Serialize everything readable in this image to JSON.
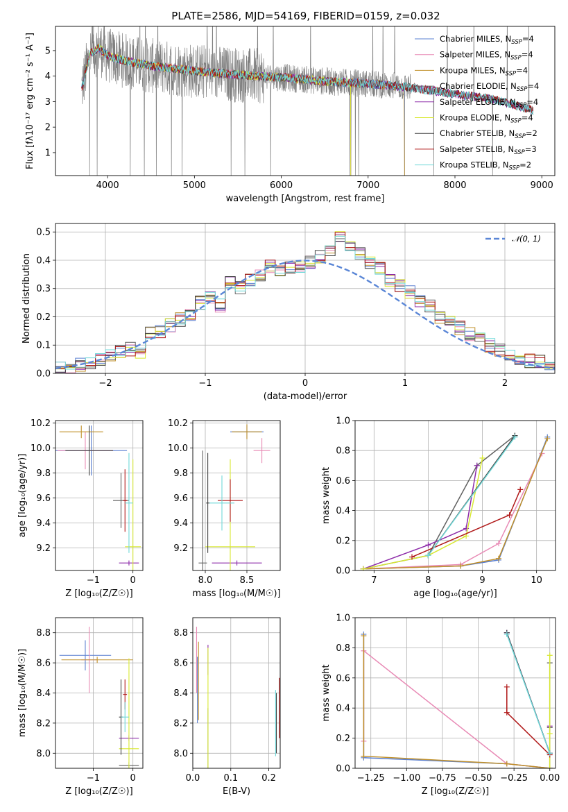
{
  "title": "PLATE=2586, MJD=54169, FIBERID=0159, z=0.032",
  "colors": [
    "#5a7fd0",
    "#e88ab5",
    "#c0902a",
    "#606060",
    "#8c2aa8",
    "#d8e832",
    "#404040",
    "#b01818",
    "#6fd8d8"
  ],
  "legend": [
    {
      "prefix": "Chabrier MILES, N",
      "sub": "SSP",
      "suffix": "=4"
    },
    {
      "prefix": "Salpeter MILES, N",
      "sub": "SSP",
      "suffix": "=4"
    },
    {
      "prefix": "Kroupa MILES, N",
      "sub": "SSP",
      "suffix": "=4"
    },
    {
      "prefix": "Chabrier ELODIE, N",
      "sub": "SSP",
      "suffix": "=4"
    },
    {
      "prefix": "Salpeter ELODIE, N",
      "sub": "SSP",
      "suffix": "=4"
    },
    {
      "prefix": "Kroupa ELODIE, N",
      "sub": "SSP",
      "suffix": "=4"
    },
    {
      "prefix": "Chabrier STELIB, N",
      "sub": "SSP",
      "suffix": "=2"
    },
    {
      "prefix": "Salpeter STELIB, N",
      "sub": "SSP",
      "suffix": "=3"
    },
    {
      "prefix": "Kroupa STELIB, N",
      "sub": "SSP",
      "suffix": "=2"
    }
  ],
  "chart_data": [
    {
      "id": "spectrum",
      "type": "line",
      "xlabel": "wavelength [Angstrom, rest frame]",
      "ylabel": "Flux [fλ10⁻¹⁷ erg cm⁻² s⁻¹ A⁻¹]",
      "xlim": [
        3400,
        9150
      ],
      "ylim": [
        0.1,
        5.95
      ],
      "xticks": [
        4000,
        5000,
        6000,
        7000,
        8000,
        9000
      ],
      "yticks": [
        1,
        2,
        3,
        4,
        5
      ],
      "grid": false,
      "legend_loc": "upper right",
      "continuum": [
        [
          3700,
          3.5
        ],
        [
          3800,
          4.9
        ],
        [
          3900,
          5.1
        ],
        [
          4000,
          4.8
        ],
        [
          4200,
          4.6
        ],
        [
          4500,
          4.4
        ],
        [
          5000,
          4.2
        ],
        [
          5500,
          4.05
        ],
        [
          6000,
          3.95
        ],
        [
          6500,
          3.8
        ],
        [
          7000,
          3.7
        ],
        [
          7500,
          3.55
        ],
        [
          8000,
          3.3
        ],
        [
          8500,
          3.05
        ],
        [
          8900,
          2.65
        ]
      ],
      "data_extent": [
        3700,
        8900
      ],
      "model_edges": [
        [
          3700,
          7420
        ],
        [
          3750,
          6800
        ],
        [
          3750,
          7420
        ],
        [
          3700,
          8900
        ],
        [
          3700,
          8900
        ],
        [
          3750,
          6800
        ],
        [
          3700,
          8900
        ],
        [
          3700,
          8900
        ],
        [
          3700,
          8900
        ]
      ]
    },
    {
      "id": "residual_hist",
      "type": "histogram",
      "xlabel": "(data-model)/error",
      "ylabel": "Normed distribution",
      "xlim": [
        -2.5,
        2.5
      ],
      "ylim": [
        0,
        0.53
      ],
      "xticks": [
        -2,
        -1,
        0,
        1,
        2
      ],
      "yticks": [
        0.0,
        0.1,
        0.2,
        0.3,
        0.4,
        0.5
      ],
      "grid": true,
      "legend_loc": "upper right",
      "reference_label": "𝒩(0, 1)",
      "reference": {
        "mu": 0,
        "sigma": 1
      },
      "bin_width": 0.1,
      "base_values": [
        0.02,
        0.025,
        0.03,
        0.04,
        0.05,
        0.06,
        0.08,
        0.085,
        0.07,
        0.14,
        0.15,
        0.17,
        0.19,
        0.21,
        0.25,
        0.27,
        0.24,
        0.32,
        0.3,
        0.33,
        0.35,
        0.38,
        0.36,
        0.37,
        0.38,
        0.39,
        0.41,
        0.44,
        0.48,
        0.45,
        0.42,
        0.39,
        0.37,
        0.33,
        0.31,
        0.29,
        0.26,
        0.24,
        0.2,
        0.19,
        0.16,
        0.14,
        0.12,
        0.1,
        0.08,
        0.06,
        0.05,
        0.045,
        0.04,
        0.035
      ]
    },
    {
      "id": "Z_vs_age",
      "type": "errorbar",
      "xlabel": "Z [log₁₀(Z/Z☉)]",
      "ylabel": "age  [log₁₀(age/yr)]",
      "xlim": [
        -1.95,
        0.25
      ],
      "ylim": [
        9.02,
        10.22
      ],
      "xticks": [
        -1,
        0
      ],
      "yticks": [
        9.2,
        9.4,
        9.6,
        9.8,
        10.0,
        10.2
      ],
      "points": [
        {
          "c": 0,
          "x": -1.05,
          "y": 9.98,
          "xerr": 0.9,
          "yerr": 0.2
        },
        {
          "c": 1,
          "x": -1.2,
          "y": 9.98,
          "xerr": 0.7,
          "yerr": 0.15
        },
        {
          "c": 2,
          "x": -1.3,
          "y": 10.13,
          "xerr": 0.55,
          "yerr": 0.05
        },
        {
          "c": 3,
          "x": -0.3,
          "y": 9.58,
          "xerr": 0.2,
          "yerr": 0.22
        },
        {
          "c": 4,
          "x": -0.1,
          "y": 9.08,
          "xerr": 0.25,
          "yerr": 0.02
        },
        {
          "c": 5,
          "x": 0.0,
          "y": 9.21,
          "xerr": 0.2,
          "yerr": 0.7
        },
        {
          "c": 6,
          "x": -1.1,
          "y": 9.98,
          "xerr": 0.6,
          "yerr": 0.2
        },
        {
          "c": 7,
          "x": -0.2,
          "y": 9.58,
          "xerr": 0.05,
          "yerr": 0.25
        },
        {
          "c": 8,
          "x": -0.1,
          "y": 9.56,
          "xerr": 0.1,
          "yerr": 0.4
        }
      ]
    },
    {
      "id": "mass_vs_age",
      "type": "errorbar",
      "xlabel": "mass [log₁₀(M/M☉)]",
      "ylabel": "",
      "xlim": [
        7.85,
        8.9
      ],
      "ylim": [
        9.02,
        10.22
      ],
      "xticks": [
        8.0,
        8.5
      ],
      "yticks": [
        9.2,
        9.4,
        9.6,
        9.8,
        10.0,
        10.2
      ],
      "points": [
        {
          "c": 0,
          "x": 8.5,
          "y": 10.13,
          "xerr": 0.2,
          "yerr": 0.05
        },
        {
          "c": 1,
          "x": 8.68,
          "y": 9.98,
          "xerr": 0.1,
          "yerr": 0.1
        },
        {
          "c": 2,
          "x": 8.5,
          "y": 10.13,
          "xerr": 0.18,
          "yerr": 0.06
        },
        {
          "c": 3,
          "x": 7.97,
          "y": 9.08,
          "xerr": 0.05,
          "yerr": 0.9
        },
        {
          "c": 4,
          "x": 8.38,
          "y": 9.08,
          "xerr": 0.3,
          "yerr": 0.02
        },
        {
          "c": 5,
          "x": 8.3,
          "y": 9.21,
          "xerr": 0.3,
          "yerr": 0.7
        },
        {
          "c": 6,
          "x": 8.03,
          "y": 9.56,
          "xerr": 0.02,
          "yerr": 0.4
        },
        {
          "c": 7,
          "x": 8.3,
          "y": 9.58,
          "xerr": 0.15,
          "yerr": 0.17
        },
        {
          "c": 8,
          "x": 8.2,
          "y": 9.56,
          "xerr": 0.15,
          "yerr": 0.22
        }
      ]
    },
    {
      "id": "age_vs_weight",
      "type": "line",
      "xlabel": "age  [log₁₀(age/yr)]",
      "ylabel": "mass weight",
      "xlim": [
        6.65,
        10.35
      ],
      "ylim": [
        0,
        1.0
      ],
      "xticks": [
        7,
        8,
        9,
        10
      ],
      "yticks": [
        0.0,
        0.2,
        0.4,
        0.6,
        0.8,
        1.0
      ],
      "series": [
        {
          "c": 0,
          "x": [
            6.8,
            8.6,
            9.3,
            10.2
          ],
          "y": [
            0.01,
            0.03,
            0.07,
            0.89
          ]
        },
        {
          "c": 1,
          "x": [
            6.8,
            8.6,
            9.3,
            10.1
          ],
          "y": [
            0.01,
            0.04,
            0.18,
            0.78
          ]
        },
        {
          "c": 2,
          "x": [
            6.8,
            8.6,
            9.3,
            10.2
          ],
          "y": [
            0.01,
            0.03,
            0.08,
            0.88
          ]
        },
        {
          "c": 3,
          "x": [
            6.8,
            8.0,
            8.9,
            9.6
          ],
          "y": [
            0.01,
            0.1,
            0.7,
            0.9
          ]
        },
        {
          "c": 4,
          "x": [
            6.8,
            8.0,
            8.7,
            8.9
          ],
          "y": [
            0.01,
            0.17,
            0.28,
            0.7
          ]
        },
        {
          "c": 5,
          "x": [
            6.8,
            8.0,
            8.7,
            9.0
          ],
          "y": [
            0.01,
            0.1,
            0.23,
            0.75
          ]
        },
        {
          "c": 6,
          "x": [
            8.0,
            9.6
          ],
          "y": [
            0.1,
            0.9
          ]
        },
        {
          "c": 7,
          "x": [
            7.7,
            9.5,
            9.7
          ],
          "y": [
            0.09,
            0.37,
            0.54
          ]
        },
        {
          "c": 8,
          "x": [
            8.0,
            9.6
          ],
          "y": [
            0.1,
            0.89
          ]
        }
      ]
    },
    {
      "id": "Z_vs_mass",
      "type": "errorbar",
      "xlabel": "Z [log₁₀(Z/Z☉)]",
      "ylabel": "mass [log₁₀(M/M☉)]",
      "xlim": [
        -1.95,
        0.25
      ],
      "ylim": [
        7.9,
        8.9
      ],
      "xticks": [
        -1,
        0
      ],
      "yticks": [
        8.0,
        8.2,
        8.4,
        8.6,
        8.8
      ],
      "points": [
        {
          "c": 0,
          "x": -1.2,
          "y": 8.65,
          "xerr": 0.65,
          "yerr": 0.1
        },
        {
          "c": 1,
          "x": -1.1,
          "y": 8.62,
          "xerr": 0.2,
          "yerr": 0.22
        },
        {
          "c": 2,
          "x": -0.9,
          "y": 8.62,
          "xerr": 0.9,
          "yerr": 0.02
        },
        {
          "c": 3,
          "x": -0.1,
          "y": 7.92,
          "xerr": 0.25,
          "yerr": 0.02
        },
        {
          "c": 4,
          "x": -0.1,
          "y": 8.1,
          "xerr": 0.25,
          "yerr": 0.02
        },
        {
          "c": 5,
          "x": -0.1,
          "y": 8.03,
          "xerr": 0.25,
          "yerr": 0.6
        },
        {
          "c": 6,
          "x": -0.3,
          "y": 8.24,
          "xerr": 0.05,
          "yerr": 0.25
        },
        {
          "c": 7,
          "x": -0.2,
          "y": 8.39,
          "xerr": 0.05,
          "yerr": 0.1
        },
        {
          "c": 8,
          "x": -0.2,
          "y": 8.24,
          "xerr": 0.1,
          "yerr": 0.1
        }
      ]
    },
    {
      "id": "EBV_vs_mass",
      "type": "errorbar",
      "xlabel": "E(B-V)",
      "ylabel": "",
      "xlim": [
        0.0,
        0.23
      ],
      "ylim": [
        7.9,
        8.9
      ],
      "xticks": [
        0.0,
        0.1,
        0.2
      ],
      "yticks": [
        8.0,
        8.2,
        8.4,
        8.6,
        8.8
      ],
      "points": [
        {
          "c": 0,
          "x": 0.012,
          "y": 8.42,
          "xerr": 0.0,
          "yerr": 0.22
        },
        {
          "c": 1,
          "x": 0.01,
          "y": 8.62,
          "xerr": 0.0,
          "yerr": 0.22
        },
        {
          "c": 2,
          "x": 0.015,
          "y": 8.48,
          "xerr": 0.0,
          "yerr": 0.26
        },
        {
          "c": 3,
          "x": 0.04,
          "y": 8.1,
          "xerr": 0.0,
          "yerr": 0.2
        },
        {
          "c": 4,
          "x": 0.04,
          "y": 8.62,
          "xerr": 0.0,
          "yerr": 0.1
        },
        {
          "c": 5,
          "x": 0.04,
          "y": 8.3,
          "xerr": 0.0,
          "yerr": 0.4
        },
        {
          "c": 6,
          "x": 0.22,
          "y": 8.2,
          "xerr": 0.0,
          "yerr": 0.2
        },
        {
          "c": 7,
          "x": 0.228,
          "y": 8.3,
          "xerr": 0.0,
          "yerr": 0.2
        },
        {
          "c": 8,
          "x": 0.218,
          "y": 8.2,
          "xerr": 0.0,
          "yerr": 0.22
        }
      ]
    },
    {
      "id": "Z_vs_weight",
      "type": "line",
      "xlabel": "Z [log₁₀(Z/Z☉)]",
      "ylabel": "mass weight",
      "xlim": [
        -1.36,
        0.04
      ],
      "ylim": [
        0,
        1.0
      ],
      "xticks": [
        -1.25,
        -1.0,
        -0.75,
        -0.5,
        -0.25,
        0.0
      ],
      "yticks": [
        0.0,
        0.2,
        0.4,
        0.6,
        0.8,
        1.0
      ],
      "tick_labels": [
        "−1.25",
        "−1.00",
        "−0.75",
        "−0.50",
        "−0.25",
        "0.00"
      ],
      "series": [
        {
          "c": 0,
          "x": [
            -1.3,
            -1.3,
            -0.3,
            0.0
          ],
          "y": [
            0.89,
            0.07,
            0.03,
            0.0
          ]
        },
        {
          "c": 1,
          "x": [
            -1.3,
            -1.3,
            -0.3,
            0.0
          ],
          "y": [
            0.18,
            0.78,
            0.03,
            0.0
          ]
        },
        {
          "c": 2,
          "x": [
            -1.3,
            -1.3,
            -0.3,
            0.0
          ],
          "y": [
            0.88,
            0.08,
            0.03,
            0.0
          ]
        },
        {
          "c": 3,
          "x": [
            -0.3,
            0.0,
            0.0,
            0.0
          ],
          "y": [
            0.9,
            0.1,
            0.7,
            0.27
          ]
        },
        {
          "c": 4,
          "x": [
            -0.3,
            0.0,
            0.0,
            0.0
          ],
          "y": [
            0.9,
            0.1,
            0.28,
            0.0
          ]
        },
        {
          "c": 5,
          "x": [
            0.0,
            0.0,
            0.0
          ],
          "y": [
            0.0,
            0.75,
            0.23
          ]
        },
        {
          "c": 6,
          "x": [
            -0.3,
            0.0
          ],
          "y": [
            0.9,
            0.1
          ]
        },
        {
          "c": 7,
          "x": [
            -0.3,
            -0.3,
            0.0
          ],
          "y": [
            0.54,
            0.37,
            0.09
          ]
        },
        {
          "c": 8,
          "x": [
            -0.3,
            0.0
          ],
          "y": [
            0.89,
            0.1
          ]
        }
      ]
    }
  ]
}
